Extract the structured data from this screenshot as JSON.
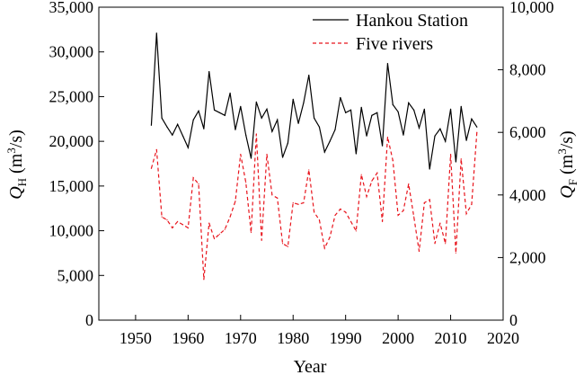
{
  "chart_data": {
    "type": "line",
    "xlabel": "Year",
    "ylabel_left": {
      "main": "Q",
      "sub": "H",
      "unit_pre": " (m",
      "unit_sup": "3",
      "unit_post": "/s)"
    },
    "ylabel_right": {
      "main": "Q",
      "sub": "F",
      "unit_pre": " (m",
      "unit_sup": "3",
      "unit_post": "/s)"
    },
    "xlim": [
      1943,
      2020
    ],
    "ylim_left": [
      0,
      35000
    ],
    "ylim_right": [
      0,
      10000
    ],
    "x_ticks": [
      "1950",
      "1960",
      "1970",
      "1980",
      "1990",
      "2000",
      "2010",
      "2020"
    ],
    "y_left_ticks": [
      "0",
      "5,000",
      "10,000",
      "15,000",
      "20,000",
      "25,000",
      "30,000",
      "35,000"
    ],
    "y_right_ticks": [
      "0",
      "2,000",
      "4,000",
      "6,000",
      "8,000",
      "10,000"
    ],
    "legend_position": "top-right",
    "grid": false,
    "x": [
      1953,
      1954,
      1955,
      1956,
      1957,
      1958,
      1959,
      1960,
      1961,
      1962,
      1963,
      1964,
      1965,
      1966,
      1967,
      1968,
      1969,
      1970,
      1971,
      1972,
      1973,
      1974,
      1975,
      1976,
      1977,
      1978,
      1979,
      1980,
      1981,
      1982,
      1983,
      1984,
      1985,
      1986,
      1987,
      1988,
      1989,
      1990,
      1991,
      1992,
      1993,
      1994,
      1995,
      1996,
      1997,
      1998,
      1999,
      2000,
      2001,
      2002,
      2003,
      2004,
      2005,
      2006,
      2007,
      2008,
      2009,
      2010,
      2011,
      2012,
      2013,
      2014,
      2015
    ],
    "series": [
      {
        "name": "Hankou Station",
        "axis": "left",
        "color": "#000000",
        "dash": "solid",
        "values": [
          21800,
          32100,
          22600,
          21600,
          20700,
          21900,
          20600,
          19300,
          22400,
          23400,
          21400,
          27800,
          23500,
          23200,
          22900,
          25400,
          21300,
          23900,
          20700,
          18100,
          24400,
          22600,
          23600,
          21100,
          22400,
          18200,
          19800,
          24700,
          22000,
          24300,
          27400,
          22600,
          21600,
          18800,
          20000,
          21300,
          24900,
          23200,
          23500,
          18600,
          23800,
          20600,
          22900,
          23200,
          19500,
          28700,
          24100,
          23300,
          20700,
          24300,
          23500,
          21500,
          23600,
          16900,
          20600,
          21400,
          20000,
          23600,
          17700,
          23900,
          20100,
          22500,
          21600
        ]
      },
      {
        "name": "Five rivers",
        "axis": "right",
        "color": "#e8141c",
        "dash": "dashed",
        "values": [
          4850,
          5450,
          3300,
          3200,
          2950,
          3150,
          3050,
          2950,
          4550,
          4350,
          1300,
          3100,
          2600,
          2750,
          2900,
          3300,
          3800,
          5300,
          4400,
          2800,
          5950,
          2550,
          5300,
          4000,
          3900,
          2450,
          2350,
          3750,
          3700,
          3750,
          4800,
          3450,
          3200,
          2300,
          2650,
          3350,
          3550,
          3450,
          3150,
          2850,
          4650,
          3950,
          4450,
          4700,
          3150,
          5850,
          5100,
          3350,
          3500,
          4350,
          3300,
          2200,
          3750,
          3850,
          2450,
          3100,
          2450,
          5300,
          2150,
          5150,
          3400,
          3700,
          6000
        ]
      }
    ]
  }
}
